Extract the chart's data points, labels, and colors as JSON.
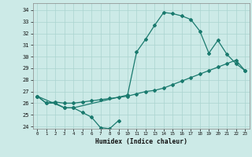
{
  "xlabel": "Humidex (Indice chaleur)",
  "bg_color": "#cceae7",
  "grid_color": "#aad4d0",
  "line_color": "#1a7a6e",
  "xlim": [
    -0.5,
    23.5
  ],
  "ylim": [
    23.8,
    34.6
  ],
  "xticks": [
    0,
    1,
    2,
    3,
    4,
    5,
    6,
    7,
    8,
    9,
    10,
    11,
    12,
    13,
    14,
    15,
    16,
    17,
    18,
    19,
    20,
    21,
    22,
    23
  ],
  "yticks": [
    24,
    25,
    26,
    27,
    28,
    29,
    30,
    31,
    32,
    33,
    34
  ],
  "line1_x": [
    0,
    1,
    2,
    3,
    4,
    5,
    6,
    7,
    8,
    9
  ],
  "line1_y": [
    26.6,
    26.0,
    26.0,
    25.6,
    25.6,
    25.2,
    24.8,
    23.9,
    23.8,
    24.5
  ],
  "line2_x": [
    0,
    1,
    2,
    3,
    4,
    5,
    6,
    7,
    8,
    9,
    10,
    11,
    12,
    13,
    14,
    15,
    16,
    17,
    18,
    19,
    20,
    21,
    22,
    23
  ],
  "line2_y": [
    26.6,
    26.0,
    26.1,
    26.0,
    26.0,
    26.1,
    26.2,
    26.3,
    26.4,
    26.5,
    26.6,
    26.8,
    27.0,
    27.1,
    27.3,
    27.6,
    27.9,
    28.2,
    28.5,
    28.8,
    29.1,
    29.4,
    29.7,
    28.8
  ],
  "line3_x": [
    0,
    3,
    4,
    10,
    11,
    12,
    13,
    14,
    15,
    16,
    17,
    18,
    19,
    20,
    21,
    22,
    23
  ],
  "line3_y": [
    26.6,
    25.6,
    25.6,
    26.7,
    30.4,
    31.5,
    32.7,
    33.8,
    33.7,
    33.5,
    33.2,
    32.2,
    30.3,
    31.4,
    30.2,
    29.4,
    28.8
  ]
}
